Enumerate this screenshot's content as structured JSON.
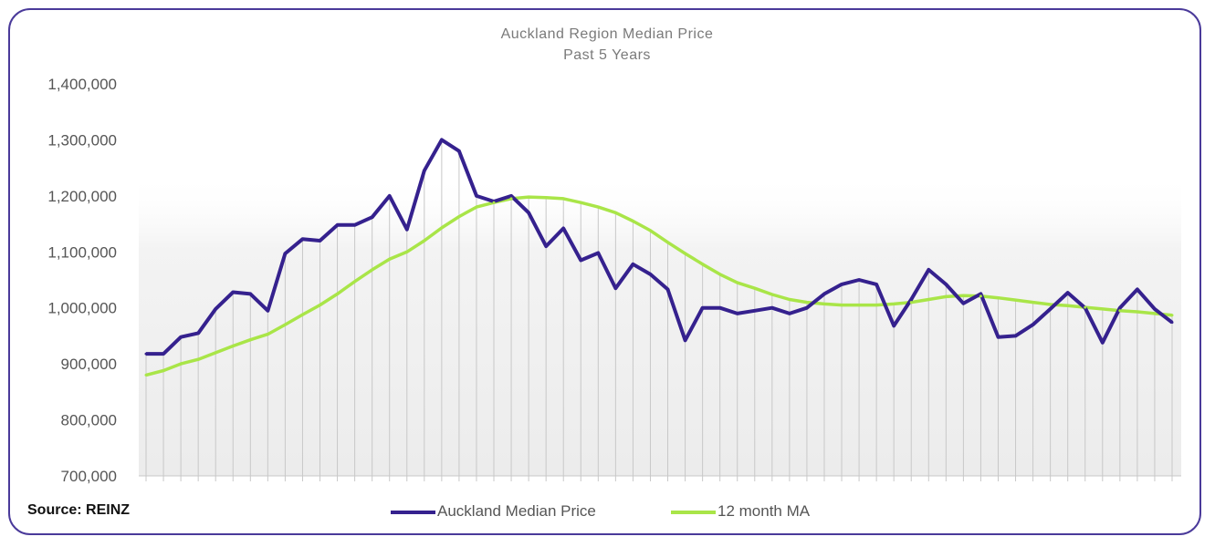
{
  "chart_data": {
    "type": "line",
    "title": "Auckland Region  Median Price",
    "subtitle": "Past  5  Years",
    "source": "Source: REINZ",
    "ylim": [
      700000,
      1400000
    ],
    "yticks": [
      "1,400,000",
      "1,300,000",
      "1,200,000",
      "1,100,000",
      "1,000,000",
      "900,000",
      "800,000",
      "700,000"
    ],
    "ytick_values": [
      1400000,
      1300000,
      1200000,
      1100000,
      1000000,
      900000,
      800000,
      700000
    ],
    "legend_position": "bottom",
    "grid": "vertical",
    "colors": {
      "median": "#35218e",
      "ma": "#a9e548",
      "frame": "#4a3a9a",
      "grid": "#c8c8c8"
    },
    "series": [
      {
        "name": "Auckland Median Price",
        "values": [
          918000,
          918000,
          948000,
          955000,
          998000,
          1028000,
          1025000,
          995000,
          1097000,
          1123000,
          1120000,
          1148000,
          1148000,
          1162000,
          1200000,
          1140000,
          1245000,
          1300000,
          1280000,
          1200000,
          1190000,
          1200000,
          1170000,
          1110000,
          1142000,
          1085000,
          1098000,
          1035000,
          1078000,
          1060000,
          1033000,
          942000,
          1000000,
          1000000,
          990000,
          995000,
          1000000,
          990000,
          1000000,
          1025000,
          1042000,
          1050000,
          1042000,
          968000,
          1015000,
          1068000,
          1042000,
          1008000,
          1025000,
          948000,
          950000,
          970000,
          998000,
          1027000,
          1000000,
          938000,
          1000000,
          1033000,
          998000,
          974000
        ]
      },
      {
        "name": "12 month MA",
        "values": [
          880000,
          888000,
          900000,
          908000,
          920000,
          932000,
          943000,
          953000,
          970000,
          988000,
          1005000,
          1025000,
          1047000,
          1068000,
          1087000,
          1100000,
          1120000,
          1143000,
          1163000,
          1180000,
          1188000,
          1195000,
          1198000,
          1197000,
          1195000,
          1188000,
          1180000,
          1170000,
          1155000,
          1138000,
          1117000,
          1097000,
          1078000,
          1060000,
          1045000,
          1035000,
          1024000,
          1015000,
          1010000,
          1007000,
          1005000,
          1005000,
          1005000,
          1007000,
          1010000,
          1015000,
          1020000,
          1022000,
          1021000,
          1018000,
          1014000,
          1010000,
          1006000,
          1004000,
          1001000,
          998000,
          995000,
          993000,
          990000,
          987000
        ]
      }
    ]
  }
}
